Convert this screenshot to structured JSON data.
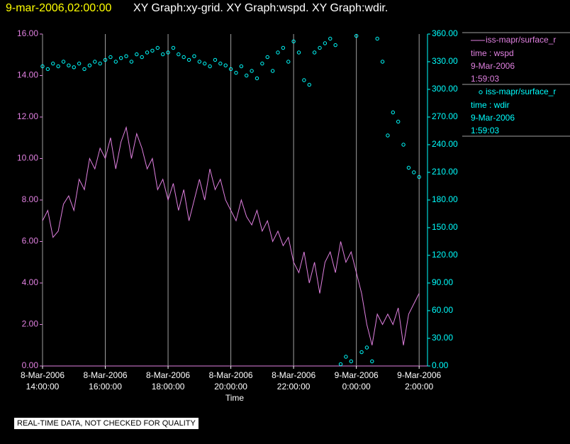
{
  "chart_data": {
    "type": "xy",
    "title_time": "9-mar-2006,02:00:00",
    "title": "XY Graph:xy-grid.  XY Graph:wspd.  XY Graph:wdir.",
    "x_label": "Time",
    "note": "REAL-TIME DATA, NOT CHECKED FOR QUALITY",
    "grid": "x",
    "x": [
      "2006-03-08T14:00:00",
      "2006-03-08T14:10:00",
      "2006-03-08T14:20:00",
      "2006-03-08T14:30:00",
      "2006-03-08T14:40:00",
      "2006-03-08T14:50:00",
      "2006-03-08T15:00:00",
      "2006-03-08T15:10:00",
      "2006-03-08T15:20:00",
      "2006-03-08T15:30:00",
      "2006-03-08T15:40:00",
      "2006-03-08T15:50:00",
      "2006-03-08T16:00:00",
      "2006-03-08T16:10:00",
      "2006-03-08T16:20:00",
      "2006-03-08T16:30:00",
      "2006-03-08T16:40:00",
      "2006-03-08T16:50:00",
      "2006-03-08T17:00:00",
      "2006-03-08T17:10:00",
      "2006-03-08T17:20:00",
      "2006-03-08T17:30:00",
      "2006-03-08T17:40:00",
      "2006-03-08T17:50:00",
      "2006-03-08T18:00:00",
      "2006-03-08T18:10:00",
      "2006-03-08T18:20:00",
      "2006-03-08T18:30:00",
      "2006-03-08T18:40:00",
      "2006-03-08T18:50:00",
      "2006-03-08T19:00:00",
      "2006-03-08T19:10:00",
      "2006-03-08T19:20:00",
      "2006-03-08T19:30:00",
      "2006-03-08T19:40:00",
      "2006-03-08T19:50:00",
      "2006-03-08T20:00:00",
      "2006-03-08T20:10:00",
      "2006-03-08T20:20:00",
      "2006-03-08T20:30:00",
      "2006-03-08T20:40:00",
      "2006-03-08T20:50:00",
      "2006-03-08T21:00:00",
      "2006-03-08T21:10:00",
      "2006-03-08T21:20:00",
      "2006-03-08T21:30:00",
      "2006-03-08T21:40:00",
      "2006-03-08T21:50:00",
      "2006-03-08T22:00:00",
      "2006-03-08T22:10:00",
      "2006-03-08T22:20:00",
      "2006-03-08T22:30:00",
      "2006-03-08T22:40:00",
      "2006-03-08T22:50:00",
      "2006-03-08T23:00:00",
      "2006-03-08T23:10:00",
      "2006-03-08T23:20:00",
      "2006-03-08T23:30:00",
      "2006-03-08T23:40:00",
      "2006-03-08T23:50:00",
      "2006-03-09T00:00:00",
      "2006-03-09T00:10:00",
      "2006-03-09T00:20:00",
      "2006-03-09T00:30:00",
      "2006-03-09T00:40:00",
      "2006-03-09T00:50:00",
      "2006-03-09T01:00:00",
      "2006-03-09T01:10:00",
      "2006-03-09T01:20:00",
      "2006-03-09T01:30:00",
      "2006-03-09T01:40:00",
      "2006-03-09T01:50:00",
      "2006-03-09T02:00:00"
    ],
    "series": [
      {
        "name": "iss-mapr/surface_r",
        "details": [
          "time : wspd",
          "9-Mar-2006",
          "1:59:03"
        ],
        "style": "line",
        "color": "#e080e0",
        "values": [
          7.0,
          7.5,
          6.2,
          6.5,
          7.8,
          8.2,
          7.5,
          9.0,
          8.5,
          10.0,
          9.5,
          10.5,
          10.0,
          11.0,
          9.5,
          10.8,
          11.5,
          10.0,
          11.2,
          10.5,
          9.5,
          10.0,
          8.5,
          9.0,
          8.0,
          8.8,
          7.5,
          8.5,
          7.0,
          8.0,
          9.0,
          8.0,
          9.5,
          8.5,
          9.0,
          8.0,
          7.5,
          7.0,
          8.0,
          7.2,
          6.8,
          7.5,
          6.5,
          7.0,
          6.0,
          6.5,
          5.8,
          6.2,
          5.0,
          4.5,
          5.5,
          4.0,
          5.0,
          3.5,
          5.0,
          5.5,
          4.5,
          6.0,
          5.0,
          5.5,
          4.5,
          3.5,
          2.0,
          1.0,
          2.5,
          2.0,
          2.5,
          2.0,
          2.8,
          1.0,
          2.5,
          3.0,
          3.5
        ]
      },
      {
        "name": "iss-mapr/surface_r",
        "details": [
          "time : wdir",
          "9-Mar-2006",
          "1:59:03"
        ],
        "style": "points",
        "axis": "y2",
        "color": "#00ffff",
        "values": [
          325,
          322,
          328,
          325,
          330,
          326,
          324,
          328,
          322,
          326,
          330,
          328,
          332,
          335,
          330,
          334,
          336,
          330,
          338,
          335,
          340,
          342,
          345,
          338,
          340,
          345,
          338,
          335,
          332,
          336,
          330,
          328,
          325,
          332,
          328,
          326,
          322,
          318,
          325,
          315,
          320,
          312,
          328,
          335,
          320,
          340,
          345,
          330,
          352,
          340,
          310,
          305,
          340,
          345,
          350,
          355,
          348,
          2,
          10,
          5,
          358,
          15,
          20,
          5,
          355,
          330,
          250,
          275,
          265,
          240,
          215,
          210,
          205
        ]
      }
    ],
    "xlim": [
      "2006-03-08T14:00:00",
      "2006-03-09T02:16:00"
    ],
    "xticks": [
      {
        "value": "2006-03-08T14:00:00",
        "label": [
          "8-Mar-2006",
          "14:00:00"
        ]
      },
      {
        "value": "2006-03-08T16:00:00",
        "label": [
          "8-Mar-2006",
          "16:00:00"
        ]
      },
      {
        "value": "2006-03-08T18:00:00",
        "label": [
          "8-Mar-2006",
          "18:00:00"
        ]
      },
      {
        "value": "2006-03-08T20:00:00",
        "label": [
          "8-Mar-2006",
          "20:00:00"
        ]
      },
      {
        "value": "2006-03-08T22:00:00",
        "label": [
          "8-Mar-2006",
          "22:00:00"
        ]
      },
      {
        "value": "2006-03-09T00:00:00",
        "label": [
          "9-Mar-2006",
          "0:00:00"
        ]
      },
      {
        "value": "2006-03-09T02:00:00",
        "label": [
          "9-Mar-2006",
          "2:00:00"
        ]
      }
    ],
    "ylim": [
      0,
      16
    ],
    "yticks": [
      {
        "value": 0,
        "label": "0.00"
      },
      {
        "value": 2,
        "label": "2.00"
      },
      {
        "value": 4,
        "label": "4.00"
      },
      {
        "value": 6,
        "label": "6.00"
      },
      {
        "value": 8,
        "label": "8.00"
      },
      {
        "value": 10,
        "label": "10.00"
      },
      {
        "value": 12,
        "label": "12.00"
      },
      {
        "value": 14,
        "label": "14.00"
      },
      {
        "value": 16,
        "label": "16.00"
      }
    ],
    "y2lim": [
      0,
      360
    ],
    "y2ticks": [
      {
        "value": 0,
        "label": "0.00"
      },
      {
        "value": 30,
        "label": "30.00"
      },
      {
        "value": 60,
        "label": "60.00"
      },
      {
        "value": 90,
        "label": "90.00"
      },
      {
        "value": 120,
        "label": "120.00"
      },
      {
        "value": 150,
        "label": "150.00"
      },
      {
        "value": 180,
        "label": "180.00"
      },
      {
        "value": 210,
        "label": "210.00"
      },
      {
        "value": 240,
        "label": "240.00"
      },
      {
        "value": 270,
        "label": "270.00"
      },
      {
        "value": 300,
        "label": "300.00"
      },
      {
        "value": 330,
        "label": "330.00"
      },
      {
        "value": 360,
        "label": "360.00"
      }
    ]
  }
}
